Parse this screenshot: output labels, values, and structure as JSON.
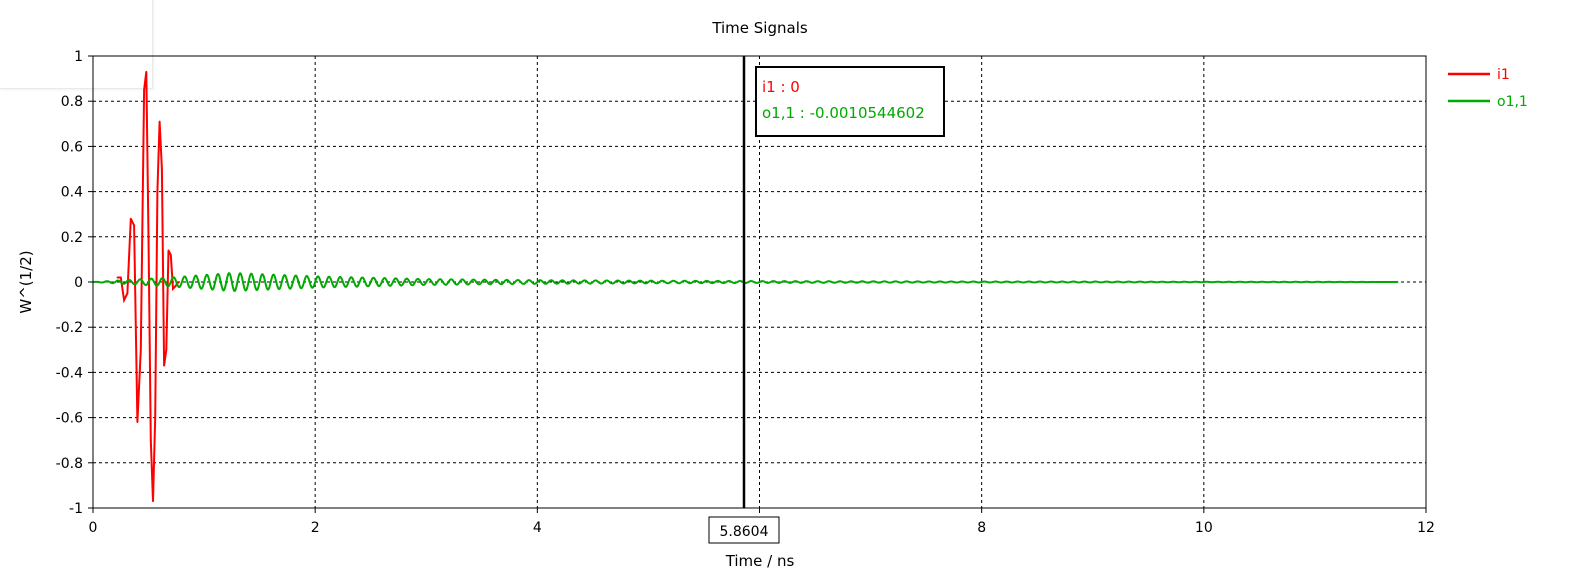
{
  "chart_data": {
    "type": "line",
    "title": "Time Signals",
    "xlabel": "Time / ns",
    "ylabel": "W^(1/2)",
    "xlim": [
      0,
      12
    ],
    "ylim": [
      -1,
      1
    ],
    "xticks": [
      "0",
      "2",
      "4",
      "6",
      "8",
      "10",
      "12"
    ],
    "yticks": [
      "1",
      "0.8",
      "0.6",
      "0.4",
      "0.2",
      "0",
      "-0.2",
      "-0.4",
      "-0.6",
      "-0.8",
      "-1"
    ],
    "grid": true,
    "legend_position": "top-right",
    "cursor": {
      "x": 5.8604,
      "x_label": "5.8604",
      "readouts": [
        {
          "label": "i1 : 0",
          "color": "#ff0000"
        },
        {
          "label": "o1,1 : -0.0010544602",
          "color": "#00aa00"
        }
      ]
    },
    "series": [
      {
        "name": "i1",
        "color": "#ff0000",
        "x": [
          0.22,
          0.25,
          0.28,
          0.31,
          0.34,
          0.37,
          0.4,
          0.43,
          0.46,
          0.48,
          0.5,
          0.52,
          0.54,
          0.56,
          0.58,
          0.6,
          0.62,
          0.64,
          0.66,
          0.68,
          0.7,
          0.72,
          0.74,
          0.77
        ],
        "y": [
          0.02,
          0.02,
          -0.08,
          -0.05,
          0.28,
          0.25,
          -0.62,
          -0.3,
          0.85,
          0.93,
          0.2,
          -0.7,
          -0.97,
          -0.6,
          0.4,
          0.71,
          0.5,
          -0.37,
          -0.3,
          0.14,
          0.12,
          -0.03,
          -0.02,
          0.0
        ]
      },
      {
        "name": "o1,1",
        "color": "#00aa00",
        "x": [
          0.0,
          0.7,
          1.25,
          2.0,
          3.0,
          4.0,
          5.0,
          6.0,
          7.0,
          8.0,
          9.0,
          10.0,
          11.0,
          11.75
        ],
        "envelope": [
          0.0,
          0.02,
          0.04,
          0.025,
          0.013,
          0.008,
          0.006,
          0.004,
          0.003,
          0.002,
          0.002,
          0.001,
          0.001,
          0.0
        ],
        "period_ns": 0.1
      }
    ]
  }
}
